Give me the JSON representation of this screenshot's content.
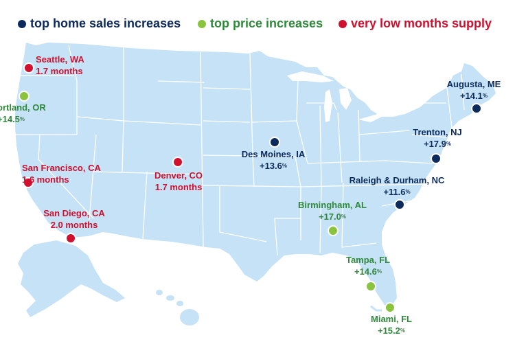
{
  "legend": {
    "sales": {
      "label": "top home sales increases",
      "color": "#0d2a5c"
    },
    "price": {
      "label": "top price increases",
      "color": "#8ac43f"
    },
    "supply": {
      "label": "very low months supply",
      "color": "#d0102e"
    }
  },
  "colors": {
    "land": "#c6e2f6",
    "state_border": "#ffffff",
    "text_sales": "#0d2a5c",
    "text_price": "#2e8a3a",
    "text_supply": "#d0102e"
  },
  "markers": [
    {
      "id": "seattle",
      "category": "supply",
      "city": "Seattle, WA",
      "value": "1.7 months"
    },
    {
      "id": "portland",
      "category": "price",
      "city": "ortland, OR",
      "value": "+14.5",
      "sup": "%"
    },
    {
      "id": "sanfrancisco",
      "category": "supply",
      "city": "San Francisco, CA",
      "value": "1.6 months"
    },
    {
      "id": "sandiego",
      "category": "supply",
      "city": "San Diego, CA",
      "value": "2.0 months"
    },
    {
      "id": "denver",
      "category": "supply",
      "city": "Denver, CO",
      "value": "1.7 months"
    },
    {
      "id": "desmoines",
      "category": "sales",
      "city": "Des Moines, IA",
      "value": "+13.6",
      "sup": "%"
    },
    {
      "id": "birmingham",
      "category": "price",
      "city": "Birmingham, AL",
      "value": "+17.0",
      "sup": "%"
    },
    {
      "id": "tampa",
      "category": "price",
      "city": "Tampa, FL",
      "value": "+14.6",
      "sup": "%"
    },
    {
      "id": "miami",
      "category": "price",
      "city": "Miami, FL",
      "value": "+15.2",
      "sup": "%"
    },
    {
      "id": "raleigh",
      "category": "sales",
      "city": "Raleigh & Durham, NC",
      "value": "+11.6",
      "sup": "%"
    },
    {
      "id": "trenton",
      "category": "sales",
      "city": "Trenton, NJ",
      "value": "+17.9",
      "sup": "%"
    },
    {
      "id": "augusta",
      "category": "sales",
      "city": "Augusta, ME",
      "value": "+14.1",
      "sup": "%"
    }
  ]
}
